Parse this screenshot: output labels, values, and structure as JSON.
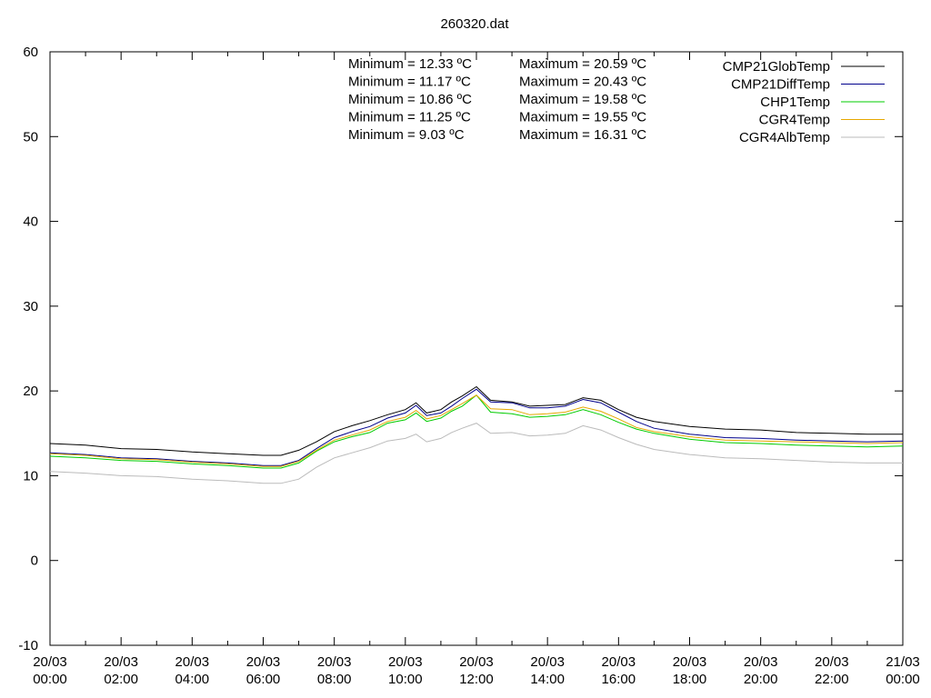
{
  "chart_data": {
    "type": "line",
    "title": "260320.dat",
    "xlabel": "",
    "ylabel": "",
    "ylim": [
      -10,
      60
    ],
    "yticks": [
      -10,
      0,
      10,
      20,
      30,
      40,
      50,
      60
    ],
    "x_hours": [
      0,
      2,
      4,
      6,
      8,
      10,
      12,
      14,
      16,
      18,
      20,
      22,
      24
    ],
    "x_tick_labels": [
      [
        "20/03",
        "00:00"
      ],
      [
        "20/03",
        "02:00"
      ],
      [
        "20/03",
        "04:00"
      ],
      [
        "20/03",
        "06:00"
      ],
      [
        "20/03",
        "08:00"
      ],
      [
        "20/03",
        "10:00"
      ],
      [
        "20/03",
        "12:00"
      ],
      [
        "20/03",
        "14:00"
      ],
      [
        "20/03",
        "16:00"
      ],
      [
        "20/03",
        "18:00"
      ],
      [
        "20/03",
        "20:00"
      ],
      [
        "20/03",
        "22:00"
      ],
      [
        "21/03",
        "00:00"
      ]
    ],
    "grid": false,
    "legend_position": "top-right",
    "series": [
      {
        "name": "CMP21GlobTemp",
        "color": "#000000",
        "points": [
          [
            0,
            13.8
          ],
          [
            1,
            13.6
          ],
          [
            2,
            13.2
          ],
          [
            3,
            13.1
          ],
          [
            4,
            12.8
          ],
          [
            5,
            12.6
          ],
          [
            6,
            12.4
          ],
          [
            6.5,
            12.4
          ],
          [
            7,
            13.0
          ],
          [
            7.5,
            14.0
          ],
          [
            8,
            15.2
          ],
          [
            8.5,
            15.9
          ],
          [
            9,
            16.5
          ],
          [
            9.5,
            17.2
          ],
          [
            10,
            17.8
          ],
          [
            10.3,
            18.6
          ],
          [
            10.6,
            17.4
          ],
          [
            11,
            17.8
          ],
          [
            11.3,
            18.7
          ],
          [
            11.6,
            19.4
          ],
          [
            12,
            20.5
          ],
          [
            12.4,
            18.9
          ],
          [
            13,
            18.7
          ],
          [
            13.5,
            18.2
          ],
          [
            14,
            18.3
          ],
          [
            14.5,
            18.4
          ],
          [
            15,
            19.2
          ],
          [
            15.5,
            18.9
          ],
          [
            16,
            17.8
          ],
          [
            16.5,
            16.9
          ],
          [
            17,
            16.4
          ],
          [
            18,
            15.8
          ],
          [
            19,
            15.5
          ],
          [
            20,
            15.4
          ],
          [
            21,
            15.1
          ],
          [
            22,
            15.0
          ],
          [
            23,
            14.9
          ],
          [
            24,
            14.9
          ]
        ]
      },
      {
        "name": "CMP21DiffTemp",
        "color": "#00008b",
        "points": [
          [
            0,
            12.7
          ],
          [
            1,
            12.5
          ],
          [
            2,
            12.1
          ],
          [
            3,
            12.0
          ],
          [
            4,
            11.7
          ],
          [
            5,
            11.5
          ],
          [
            6,
            11.2
          ],
          [
            6.5,
            11.2
          ],
          [
            7,
            11.8
          ],
          [
            7.5,
            13.2
          ],
          [
            8,
            14.5
          ],
          [
            8.5,
            15.2
          ],
          [
            9,
            15.8
          ],
          [
            9.5,
            16.8
          ],
          [
            10,
            17.4
          ],
          [
            10.3,
            18.3
          ],
          [
            10.6,
            17.1
          ],
          [
            11,
            17.4
          ],
          [
            11.3,
            18.2
          ],
          [
            11.6,
            19.1
          ],
          [
            12,
            20.2
          ],
          [
            12.4,
            18.7
          ],
          [
            13,
            18.6
          ],
          [
            13.5,
            18.0
          ],
          [
            14,
            18.0
          ],
          [
            14.5,
            18.2
          ],
          [
            15,
            19.0
          ],
          [
            15.5,
            18.6
          ],
          [
            16,
            17.5
          ],
          [
            16.5,
            16.4
          ],
          [
            17,
            15.6
          ],
          [
            18,
            14.9
          ],
          [
            19,
            14.5
          ],
          [
            20,
            14.4
          ],
          [
            21,
            14.2
          ],
          [
            22,
            14.1
          ],
          [
            23,
            14.0
          ],
          [
            24,
            14.1
          ]
        ]
      },
      {
        "name": "CHP1Temp",
        "color": "#00cc00",
        "points": [
          [
            0,
            12.3
          ],
          [
            1,
            12.1
          ],
          [
            2,
            11.8
          ],
          [
            3,
            11.7
          ],
          [
            4,
            11.4
          ],
          [
            5,
            11.2
          ],
          [
            6,
            10.9
          ],
          [
            6.5,
            10.9
          ],
          [
            7,
            11.5
          ],
          [
            7.5,
            12.9
          ],
          [
            8,
            14.0
          ],
          [
            8.5,
            14.6
          ],
          [
            9,
            15.1
          ],
          [
            9.5,
            16.2
          ],
          [
            10,
            16.6
          ],
          [
            10.3,
            17.4
          ],
          [
            10.6,
            16.4
          ],
          [
            11,
            16.8
          ],
          [
            11.3,
            17.6
          ],
          [
            11.6,
            18.2
          ],
          [
            12,
            19.5
          ],
          [
            12.4,
            17.5
          ],
          [
            13,
            17.3
          ],
          [
            13.5,
            16.9
          ],
          [
            14,
            17.0
          ],
          [
            14.5,
            17.2
          ],
          [
            15,
            17.8
          ],
          [
            15.5,
            17.2
          ],
          [
            16,
            16.3
          ],
          [
            16.5,
            15.5
          ],
          [
            17,
            15.0
          ],
          [
            18,
            14.3
          ],
          [
            19,
            13.9
          ],
          [
            20,
            13.8
          ],
          [
            21,
            13.6
          ],
          [
            22,
            13.5
          ],
          [
            23,
            13.4
          ],
          [
            24,
            13.5
          ]
        ]
      },
      {
        "name": "CGR4Temp",
        "color": "#e6a800",
        "points": [
          [
            0,
            12.6
          ],
          [
            1,
            12.4
          ],
          [
            2,
            12.0
          ],
          [
            3,
            11.9
          ],
          [
            4,
            11.6
          ],
          [
            5,
            11.4
          ],
          [
            6,
            11.1
          ],
          [
            6.5,
            11.1
          ],
          [
            7,
            11.7
          ],
          [
            7.5,
            13.0
          ],
          [
            8,
            14.2
          ],
          [
            8.5,
            14.8
          ],
          [
            9,
            15.4
          ],
          [
            9.5,
            16.4
          ],
          [
            10,
            16.9
          ],
          [
            10.3,
            17.7
          ],
          [
            10.6,
            16.7
          ],
          [
            11,
            17.1
          ],
          [
            11.3,
            17.8
          ],
          [
            11.6,
            18.5
          ],
          [
            12,
            19.5
          ],
          [
            12.4,
            17.9
          ],
          [
            13,
            17.8
          ],
          [
            13.5,
            17.2
          ],
          [
            14,
            17.3
          ],
          [
            14.5,
            17.5
          ],
          [
            15,
            18.1
          ],
          [
            15.5,
            17.6
          ],
          [
            16,
            16.7
          ],
          [
            16.5,
            15.7
          ],
          [
            17,
            15.2
          ],
          [
            18,
            14.6
          ],
          [
            19,
            14.2
          ],
          [
            20,
            14.1
          ],
          [
            21,
            14.0
          ],
          [
            22,
            13.9
          ],
          [
            23,
            13.8
          ],
          [
            24,
            13.9
          ]
        ]
      },
      {
        "name": "CGR4AlbTemp",
        "color": "#bbbbbb",
        "points": [
          [
            0,
            10.5
          ],
          [
            1,
            10.3
          ],
          [
            2,
            10.0
          ],
          [
            3,
            9.9
          ],
          [
            4,
            9.6
          ],
          [
            5,
            9.4
          ],
          [
            6,
            9.1
          ],
          [
            6.5,
            9.1
          ],
          [
            7,
            9.6
          ],
          [
            7.5,
            11.0
          ],
          [
            8,
            12.1
          ],
          [
            8.5,
            12.7
          ],
          [
            9,
            13.3
          ],
          [
            9.5,
            14.1
          ],
          [
            10,
            14.4
          ],
          [
            10.3,
            14.9
          ],
          [
            10.6,
            14.0
          ],
          [
            11,
            14.4
          ],
          [
            11.3,
            15.1
          ],
          [
            11.6,
            15.6
          ],
          [
            12,
            16.2
          ],
          [
            12.4,
            15.0
          ],
          [
            13,
            15.1
          ],
          [
            13.5,
            14.7
          ],
          [
            14,
            14.8
          ],
          [
            14.5,
            15.0
          ],
          [
            15,
            15.9
          ],
          [
            15.5,
            15.4
          ],
          [
            16,
            14.5
          ],
          [
            16.5,
            13.7
          ],
          [
            17,
            13.1
          ],
          [
            18,
            12.5
          ],
          [
            19,
            12.1
          ],
          [
            20,
            12.0
          ],
          [
            21,
            11.8
          ],
          [
            22,
            11.6
          ],
          [
            23,
            11.5
          ],
          [
            24,
            11.5
          ]
        ]
      }
    ],
    "annotations": [
      {
        "min": "Minimum = 12.33 ºC",
        "max": "Maximum = 20.59 ºC"
      },
      {
        "min": "Minimum = 11.17 ºC",
        "max": "Maximum = 20.43 ºC"
      },
      {
        "min": "Minimum = 10.86 ºC",
        "max": "Maximum = 19.58 ºC"
      },
      {
        "min": "Minimum = 11.25 ºC",
        "max": "Maximum = 19.55 ºC"
      },
      {
        "min": "Minimum = 9.03 ºC",
        "max": "Maximum = 16.31 ºC"
      }
    ]
  }
}
